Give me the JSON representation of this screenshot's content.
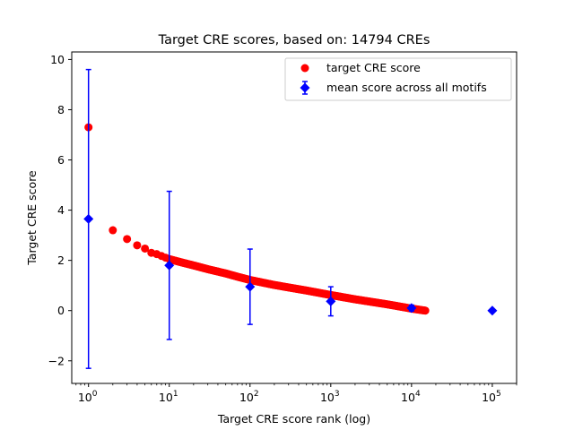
{
  "chart_data": {
    "type": "scatter",
    "title": "Target CRE scores, based on: 14794 CREs",
    "xlabel": "Target CRE score rank (log)",
    "ylabel": "Target CRE score",
    "xscale": "log",
    "xlim": [
      0.62,
      200000
    ],
    "ylim": [
      -2.9,
      10.3
    ],
    "yticks": [
      -2,
      0,
      2,
      4,
      6,
      8,
      10
    ],
    "xticks": [
      {
        "base": "10",
        "exp": "0",
        "value": 1
      },
      {
        "base": "10",
        "exp": "1",
        "value": 10
      },
      {
        "base": "10",
        "exp": "2",
        "value": 100
      },
      {
        "base": "10",
        "exp": "3",
        "value": 1000
      },
      {
        "base": "10",
        "exp": "4",
        "value": 10000
      },
      {
        "base": "10",
        "exp": "5",
        "value": 100000
      }
    ],
    "grid": false,
    "legend_position": "top-right",
    "series": [
      {
        "name": "target CRE score",
        "color": "#ff0000",
        "marker": "circle",
        "curve": [
          [
            1,
            7.3
          ],
          [
            2,
            3.2
          ],
          [
            3,
            2.85
          ],
          [
            4,
            2.6
          ],
          [
            5,
            2.47
          ],
          [
            6,
            2.3
          ],
          [
            7,
            2.25
          ],
          [
            10,
            2.05
          ],
          [
            15,
            1.9
          ],
          [
            20,
            1.8
          ],
          [
            30,
            1.65
          ],
          [
            50,
            1.48
          ],
          [
            70,
            1.35
          ],
          [
            100,
            1.22
          ],
          [
            200,
            1.02
          ],
          [
            500,
            0.8
          ],
          [
            1000,
            0.62
          ],
          [
            2000,
            0.45
          ],
          [
            5000,
            0.25
          ],
          [
            10000,
            0.08
          ],
          [
            14794,
            0.0
          ]
        ]
      },
      {
        "name": "mean score across all motifs",
        "color": "#0000ff",
        "marker": "diamond",
        "points": [
          {
            "x": 1,
            "y": 3.65,
            "err": 5.95
          },
          {
            "x": 10,
            "y": 1.8,
            "err": 2.95
          },
          {
            "x": 100,
            "y": 0.95,
            "err": 1.5
          },
          {
            "x": 1000,
            "y": 0.37,
            "err": 0.58
          },
          {
            "x": 10000,
            "y": 0.1,
            "err": 0.12
          },
          {
            "x": 100000,
            "y": 0.0,
            "err": 0.0
          }
        ]
      }
    ]
  }
}
